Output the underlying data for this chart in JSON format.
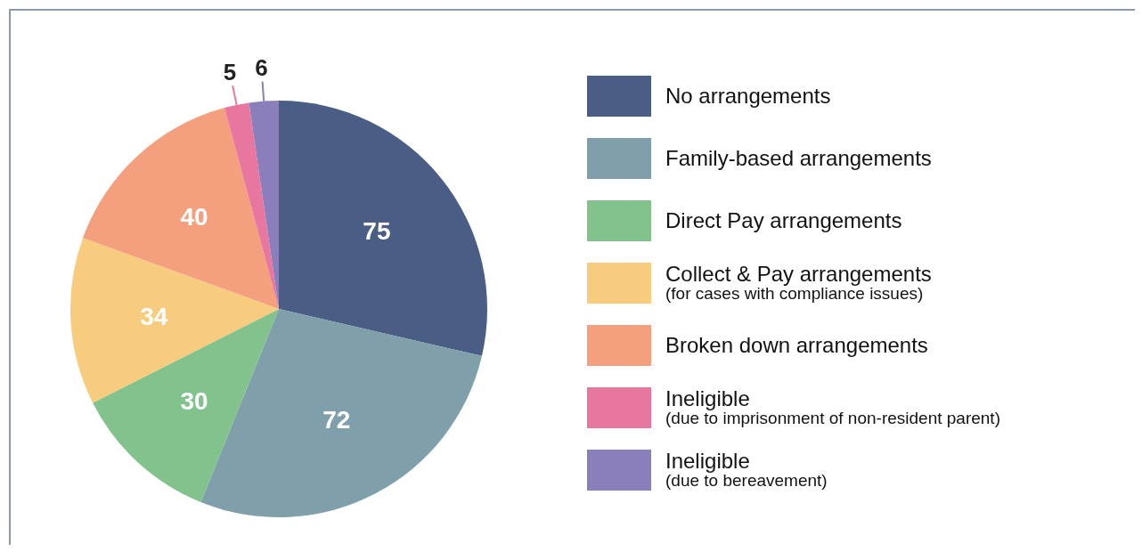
{
  "chart_data": {
    "type": "pie",
    "categories": [
      "No arrangements",
      "Family-based arrangements",
      "Direct Pay arrangements",
      "Collect & Pay arrangements\n(for cases with compliance issues)",
      "Broken down arrangements",
      "Ineligible\n(due to imprisonment of non-resident parent)",
      "Ineligible\n(due to bereavement)"
    ],
    "values": [
      75,
      72,
      30,
      34,
      40,
      5,
      6
    ],
    "colors": [
      "#4a5d85",
      "#7f9faa",
      "#82c38d",
      "#f7cc7f",
      "#f4a07e",
      "#e8779f",
      "#8a7fbb"
    ],
    "data_labels": true,
    "legend": "right"
  }
}
